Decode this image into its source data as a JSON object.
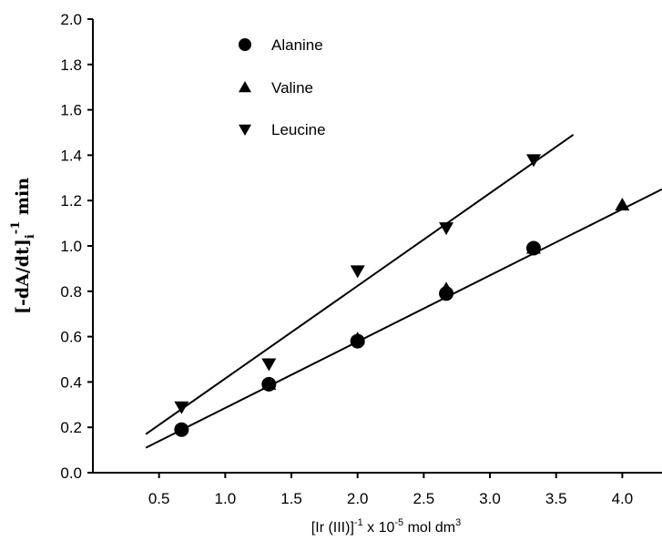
{
  "chart_data": {
    "type": "scatter",
    "title": "",
    "xlabel": "[Ir (III)]",
    "xlabel_sup": "-1",
    "xlabel_rest": " x 10",
    "xlabel_exp": "-5",
    "xlabel_units": " mol dm",
    "xlabel_units_exp": "3",
    "ylabel_main": "[-dA/dt]",
    "ylabel_sub": "i",
    "ylabel_sup": "-1",
    "ylabel_units": " min",
    "xlim": [
      0.0,
      4.3
    ],
    "ylim": [
      0.0,
      2.0
    ],
    "x_ticks": [
      0.5,
      1.0,
      1.5,
      2.0,
      2.5,
      3.0,
      3.5,
      4.0
    ],
    "x_tick_labels": [
      "0.5",
      "1.0",
      "1.5",
      "2.0",
      "2.5",
      "3.0",
      "3.5",
      "4.0"
    ],
    "y_ticks": [
      0.0,
      0.2,
      0.4,
      0.6,
      0.8,
      1.0,
      1.2,
      1.4,
      1.6,
      1.8,
      2.0
    ],
    "y_tick_labels": [
      "0.0",
      "0.2",
      "0.4",
      "0.6",
      "0.8",
      "1.0",
      "1.2",
      "1.4",
      "1.6",
      "1.8",
      "2.0"
    ],
    "grid": false,
    "legend_position": "top-left",
    "series": [
      {
        "name": "Alanine",
        "marker": "circle",
        "x": [
          0.67,
          1.33,
          2.0,
          2.67,
          3.33
        ],
        "y": [
          0.19,
          0.39,
          0.58,
          0.79,
          0.99
        ]
      },
      {
        "name": "Valine",
        "marker": "triangle-up",
        "x": [
          1.33,
          2.0,
          2.67,
          3.33,
          4.0
        ],
        "y": [
          0.39,
          0.59,
          0.81,
          0.99,
          1.18
        ]
      },
      {
        "name": "Leucine",
        "marker": "triangle-down",
        "x": [
          0.67,
          1.33,
          2.0,
          2.67,
          3.33
        ],
        "y": [
          0.29,
          0.48,
          0.89,
          1.08,
          1.38
        ]
      }
    ],
    "fit_lines": [
      {
        "series": "Alanine and Valine",
        "x": [
          0.4,
          4.3
        ],
        "y": [
          0.11,
          1.25
        ]
      },
      {
        "series": "Leucine",
        "x": [
          0.4,
          3.63
        ],
        "y": [
          0.17,
          1.49
        ]
      }
    ],
    "colors": {
      "marker": "#000000",
      "line": "#000000",
      "axis": "#000000"
    }
  }
}
